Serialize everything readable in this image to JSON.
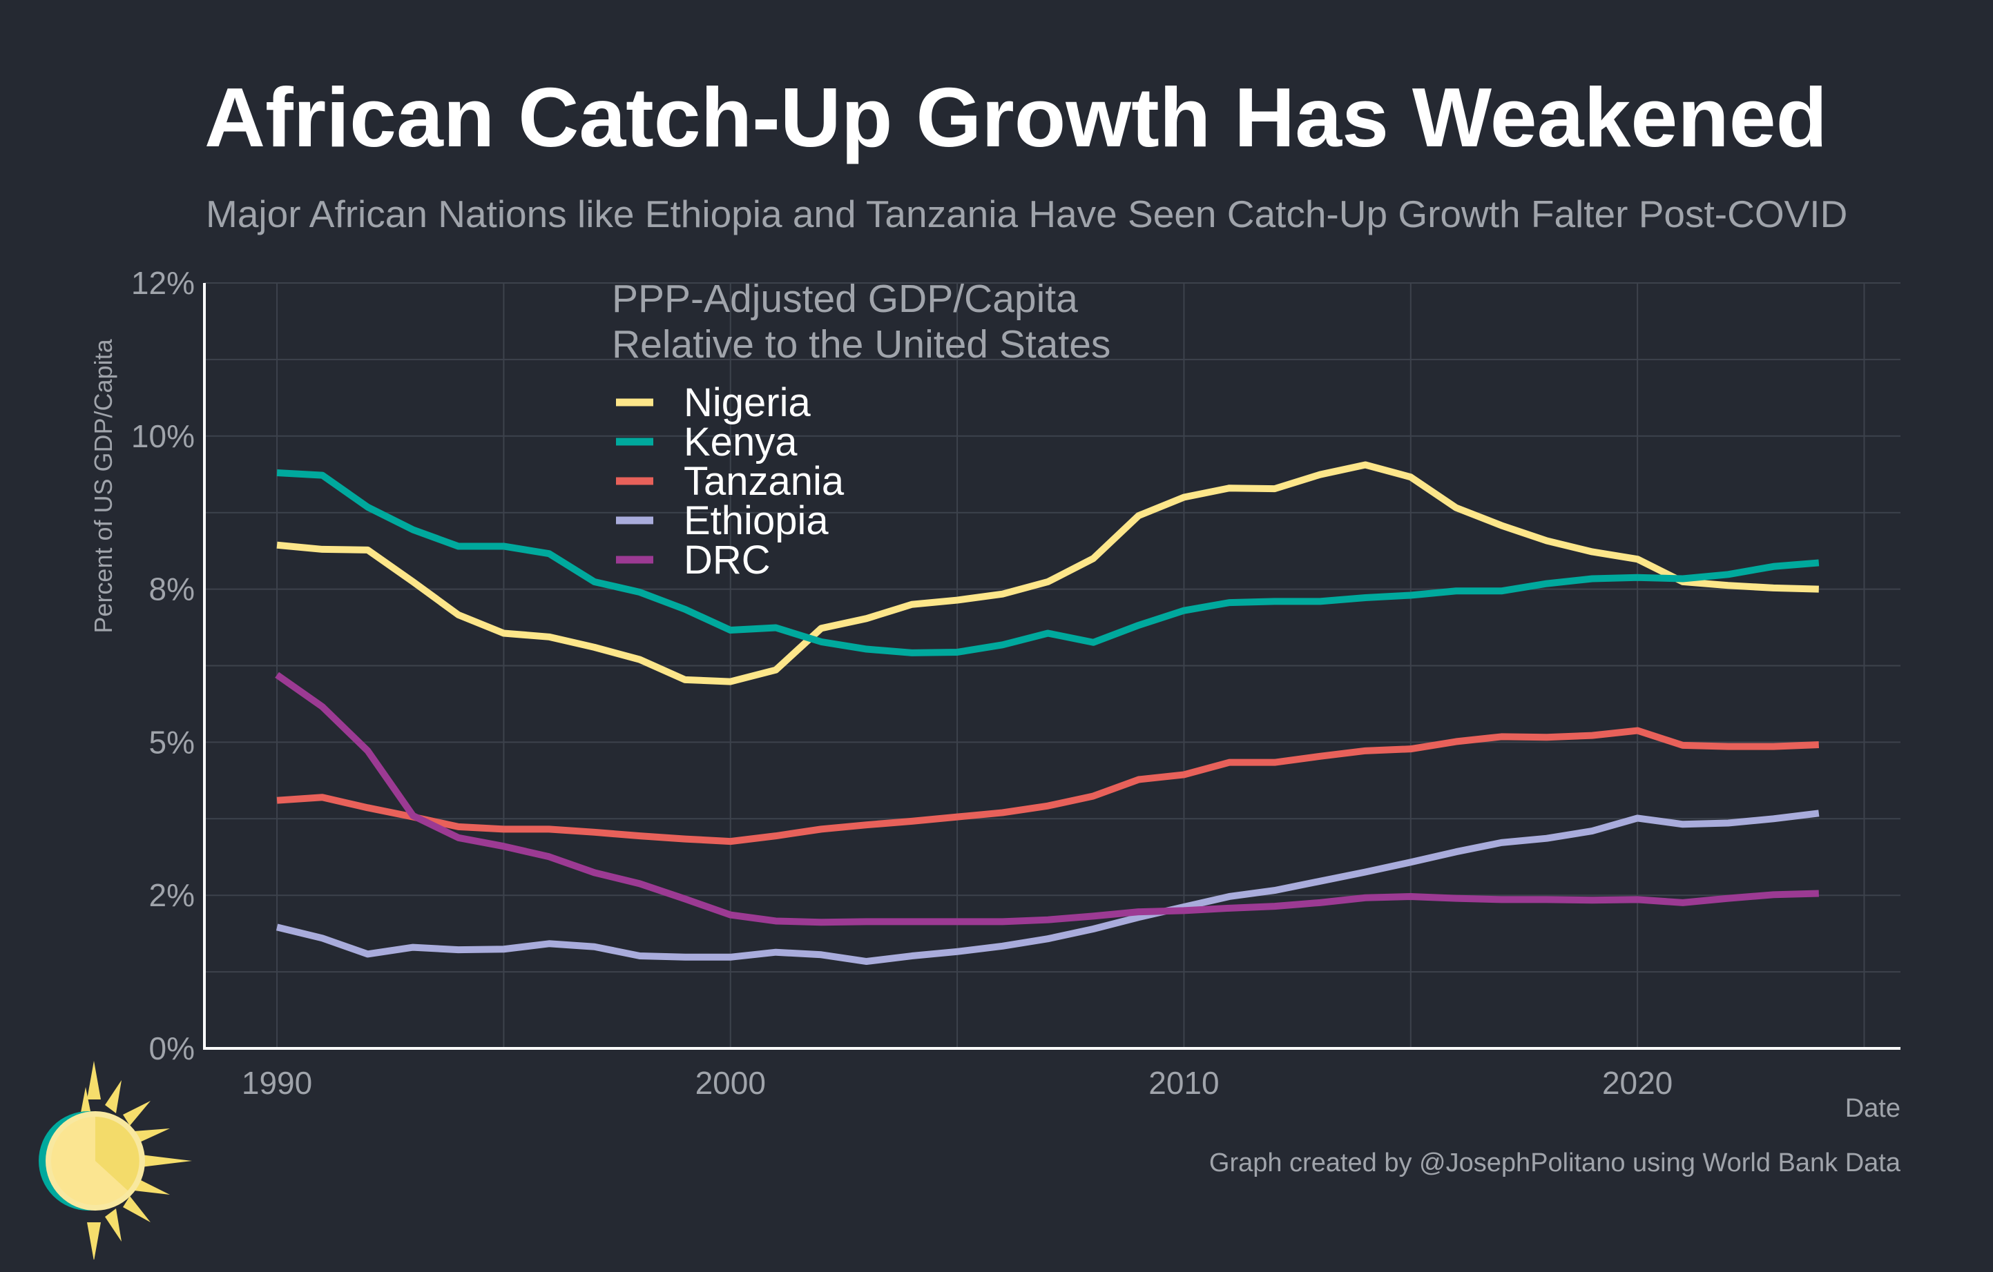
{
  "title": "African Catch-Up Growth Has Weakened",
  "subtitle": "Major African Nations like Ethiopia and Tanzania Have Seen Catch-Up Growth Falter Post-COVID",
  "credit": "Graph created by @JosephPolitano using World Bank Data",
  "chart_data": {
    "type": "line",
    "title": "PPP-Adjusted GDP/Capita",
    "subtitle": "Relative to the United States",
    "xlabel": "Date",
    "ylabel": "Percent of US GDP/Capita",
    "xlim": [
      1988.4,
      2025.8
    ],
    "ylim": [
      0,
      12.5
    ],
    "y_ticks": [
      0,
      2.5,
      5,
      7.5,
      10,
      12.5
    ],
    "y_tick_labels": [
      "0%",
      "2%",
      "5%",
      "8%",
      "10%",
      "12%"
    ],
    "x_ticks": [
      1990,
      2000,
      2010,
      2020
    ],
    "x_tick_labels": [
      "1990",
      "2000",
      "2010",
      "2020"
    ],
    "grid": true,
    "legend_position": "top-left",
    "x": [
      1990,
      1991,
      1992,
      1993,
      1994,
      1995,
      1996,
      1997,
      1998,
      1999,
      2000,
      2001,
      2002,
      2003,
      2004,
      2005,
      2006,
      2007,
      2008,
      2009,
      2010,
      2011,
      2012,
      2013,
      2014,
      2015,
      2016,
      2017,
      2018,
      2019,
      2020,
      2021,
      2022,
      2023,
      2024
    ],
    "series": [
      {
        "name": "Nigeria",
        "color": "#fde68a",
        "values": [
          8.22,
          8.15,
          8.14,
          7.62,
          7.08,
          6.78,
          6.72,
          6.55,
          6.35,
          6.02,
          5.99,
          6.18,
          6.86,
          7.02,
          7.25,
          7.32,
          7.42,
          7.62,
          8.0,
          8.7,
          9.0,
          9.15,
          9.14,
          9.37,
          9.53,
          9.33,
          8.83,
          8.54,
          8.29,
          8.11,
          7.99,
          7.62,
          7.56,
          7.52,
          7.5
        ]
      },
      {
        "name": "Kenya",
        "color": "#00a99d",
        "values": [
          9.4,
          9.36,
          8.84,
          8.47,
          8.2,
          8.2,
          8.08,
          7.62,
          7.45,
          7.17,
          6.83,
          6.87,
          6.64,
          6.52,
          6.46,
          6.47,
          6.59,
          6.78,
          6.63,
          6.91,
          7.15,
          7.28,
          7.3,
          7.3,
          7.36,
          7.4,
          7.47,
          7.47,
          7.59,
          7.67,
          7.69,
          7.67,
          7.74,
          7.87,
          7.93
        ]
      },
      {
        "name": "Tanzania",
        "color": "#e8615a",
        "values": [
          4.05,
          4.1,
          3.93,
          3.78,
          3.62,
          3.58,
          3.58,
          3.53,
          3.47,
          3.42,
          3.38,
          3.47,
          3.58,
          3.65,
          3.71,
          3.78,
          3.85,
          3.96,
          4.12,
          4.39,
          4.47,
          4.67,
          4.67,
          4.77,
          4.86,
          4.89,
          5.01,
          5.09,
          5.08,
          5.11,
          5.19,
          4.95,
          4.93,
          4.93,
          4.96
        ]
      },
      {
        "name": "Ethiopia",
        "color": "#a9acdc",
        "values": [
          1.98,
          1.8,
          1.54,
          1.65,
          1.61,
          1.62,
          1.71,
          1.66,
          1.51,
          1.49,
          1.49,
          1.57,
          1.53,
          1.42,
          1.51,
          1.58,
          1.67,
          1.79,
          1.95,
          2.14,
          2.31,
          2.48,
          2.58,
          2.73,
          2.88,
          3.04,
          3.21,
          3.36,
          3.43,
          3.55,
          3.76,
          3.66,
          3.68,
          3.75,
          3.84
        ]
      },
      {
        "name": "DRC",
        "color": "#9c3a93",
        "values": [
          6.1,
          5.58,
          4.86,
          3.8,
          3.44,
          3.3,
          3.13,
          2.87,
          2.69,
          2.44,
          2.18,
          2.08,
          2.06,
          2.07,
          2.07,
          2.07,
          2.07,
          2.1,
          2.16,
          2.23,
          2.25,
          2.29,
          2.32,
          2.38,
          2.46,
          2.48,
          2.45,
          2.43,
          2.43,
          2.42,
          2.43,
          2.38,
          2.45,
          2.51,
          2.53
        ]
      }
    ]
  },
  "logo": {
    "name": "sun-logo",
    "colors": [
      "#f6de6c",
      "#00a99d"
    ]
  }
}
